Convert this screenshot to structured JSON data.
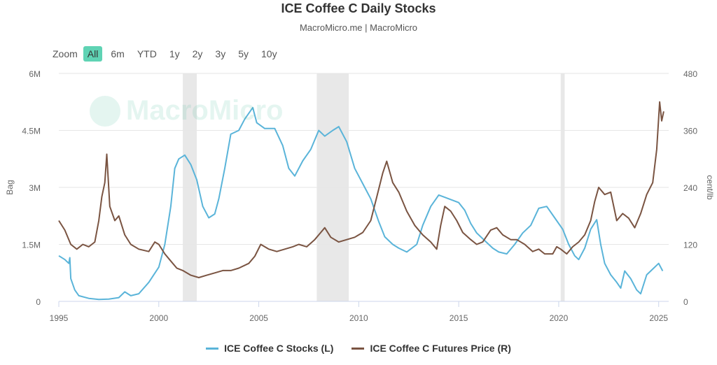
{
  "chart_data": {
    "type": "line",
    "title": "ICE Coffee C Daily Stocks",
    "subtitle": "MacroMicro.me | MacroMicro",
    "watermark": "MacroMicro",
    "zoom": {
      "label": "Zoom",
      "options": [
        "All",
        "6m",
        "YTD",
        "1y",
        "2y",
        "3y",
        "5y",
        "10y"
      ],
      "selected": "All"
    },
    "x_ticks": [
      "1995",
      "2000",
      "2005",
      "2010",
      "2015",
      "2020",
      "2025"
    ],
    "y_left": {
      "label": "Bag",
      "ticks": [
        "0",
        "1.5M",
        "3M",
        "4.5M",
        "6M"
      ],
      "range": [
        0,
        6000000
      ]
    },
    "y_right": {
      "label": "cent/lb",
      "ticks": [
        "0",
        "120",
        "240",
        "360",
        "480"
      ],
      "range": [
        0,
        480
      ]
    },
    "x_range": [
      1995,
      2025.5
    ],
    "recessions": [
      [
        2001.2,
        2001.9
      ],
      [
        2007.9,
        2009.5
      ],
      [
        2020.1,
        2020.3
      ]
    ],
    "colors": {
      "stocks": "#5ab4d9",
      "price": "#7a5442",
      "recession": "#e8e8e8",
      "grid": "#e6e6e6"
    },
    "series": [
      {
        "name": "ICE Coffee C Stocks (L)",
        "axis": "left",
        "color": "#5ab4d9",
        "points": [
          [
            1995.0,
            1200000
          ],
          [
            1995.3,
            1100000
          ],
          [
            1995.5,
            1000000
          ],
          [
            1995.55,
            1150000
          ],
          [
            1995.6,
            600000
          ],
          [
            1995.8,
            300000
          ],
          [
            1996.0,
            150000
          ],
          [
            1996.5,
            80000
          ],
          [
            1997.0,
            50000
          ],
          [
            1997.5,
            60000
          ],
          [
            1998.0,
            100000
          ],
          [
            1998.3,
            250000
          ],
          [
            1998.6,
            150000
          ],
          [
            1999.0,
            200000
          ],
          [
            1999.5,
            500000
          ],
          [
            2000.0,
            900000
          ],
          [
            2000.3,
            1500000
          ],
          [
            2000.6,
            2500000
          ],
          [
            2000.8,
            3500000
          ],
          [
            2001.0,
            3750000
          ],
          [
            2001.3,
            3850000
          ],
          [
            2001.6,
            3600000
          ],
          [
            2001.9,
            3200000
          ],
          [
            2002.2,
            2500000
          ],
          [
            2002.5,
            2200000
          ],
          [
            2002.8,
            2300000
          ],
          [
            2003.0,
            2700000
          ],
          [
            2003.3,
            3500000
          ],
          [
            2003.6,
            4400000
          ],
          [
            2004.0,
            4500000
          ],
          [
            2004.3,
            4800000
          ],
          [
            2004.7,
            5100000
          ],
          [
            2004.9,
            4700000
          ],
          [
            2005.3,
            4550000
          ],
          [
            2005.8,
            4550000
          ],
          [
            2006.2,
            4100000
          ],
          [
            2006.5,
            3500000
          ],
          [
            2006.8,
            3300000
          ],
          [
            2007.2,
            3700000
          ],
          [
            2007.6,
            4000000
          ],
          [
            2008.0,
            4500000
          ],
          [
            2008.3,
            4350000
          ],
          [
            2008.7,
            4500000
          ],
          [
            2009.0,
            4600000
          ],
          [
            2009.4,
            4200000
          ],
          [
            2009.8,
            3500000
          ],
          [
            2010.3,
            3000000
          ],
          [
            2010.6,
            2700000
          ],
          [
            2011.0,
            2100000
          ],
          [
            2011.3,
            1700000
          ],
          [
            2011.7,
            1500000
          ],
          [
            2012.0,
            1400000
          ],
          [
            2012.4,
            1300000
          ],
          [
            2012.9,
            1500000
          ],
          [
            2013.2,
            2000000
          ],
          [
            2013.6,
            2500000
          ],
          [
            2014.0,
            2800000
          ],
          [
            2014.5,
            2700000
          ],
          [
            2015.0,
            2600000
          ],
          [
            2015.3,
            2400000
          ],
          [
            2015.6,
            2050000
          ],
          [
            2015.9,
            1800000
          ],
          [
            2016.3,
            1600000
          ],
          [
            2016.7,
            1400000
          ],
          [
            2017.0,
            1300000
          ],
          [
            2017.4,
            1250000
          ],
          [
            2017.8,
            1500000
          ],
          [
            2018.2,
            1800000
          ],
          [
            2018.6,
            2000000
          ],
          [
            2019.0,
            2450000
          ],
          [
            2019.4,
            2500000
          ],
          [
            2019.8,
            2200000
          ],
          [
            2020.2,
            1900000
          ],
          [
            2020.5,
            1500000
          ],
          [
            2020.8,
            1200000
          ],
          [
            2021.0,
            1100000
          ],
          [
            2021.3,
            1400000
          ],
          [
            2021.6,
            1900000
          ],
          [
            2021.9,
            2150000
          ],
          [
            2022.1,
            1500000
          ],
          [
            2022.3,
            1000000
          ],
          [
            2022.6,
            700000
          ],
          [
            2022.9,
            500000
          ],
          [
            2023.1,
            350000
          ],
          [
            2023.3,
            800000
          ],
          [
            2023.6,
            600000
          ],
          [
            2023.9,
            300000
          ],
          [
            2024.1,
            200000
          ],
          [
            2024.4,
            700000
          ],
          [
            2024.8,
            900000
          ],
          [
            2025.0,
            1000000
          ],
          [
            2025.2,
            800000
          ]
        ]
      },
      {
        "name": "ICE Coffee C Futures Price (R)",
        "axis": "right",
        "color": "#7a5442",
        "points": [
          [
            1995.0,
            170
          ],
          [
            1995.3,
            150
          ],
          [
            1995.6,
            120
          ],
          [
            1995.9,
            110
          ],
          [
            1996.2,
            120
          ],
          [
            1996.5,
            115
          ],
          [
            1996.8,
            125
          ],
          [
            1997.0,
            170
          ],
          [
            1997.15,
            220
          ],
          [
            1997.3,
            250
          ],
          [
            1997.4,
            310
          ],
          [
            1997.55,
            200
          ],
          [
            1997.8,
            170
          ],
          [
            1998.0,
            180
          ],
          [
            1998.3,
            140
          ],
          [
            1998.6,
            120
          ],
          [
            1999.0,
            110
          ],
          [
            1999.5,
            105
          ],
          [
            1999.8,
            125
          ],
          [
            2000.0,
            120
          ],
          [
            2000.3,
            100
          ],
          [
            2000.6,
            85
          ],
          [
            2000.9,
            70
          ],
          [
            2001.2,
            65
          ],
          [
            2001.6,
            55
          ],
          [
            2002.0,
            50
          ],
          [
            2002.4,
            55
          ],
          [
            2002.8,
            60
          ],
          [
            2003.2,
            65
          ],
          [
            2003.6,
            65
          ],
          [
            2004.0,
            70
          ],
          [
            2004.5,
            80
          ],
          [
            2004.8,
            95
          ],
          [
            2005.1,
            120
          ],
          [
            2005.5,
            110
          ],
          [
            2005.9,
            105
          ],
          [
            2006.3,
            110
          ],
          [
            2006.7,
            115
          ],
          [
            2007.0,
            120
          ],
          [
            2007.4,
            115
          ],
          [
            2007.8,
            130
          ],
          [
            2008.1,
            145
          ],
          [
            2008.3,
            155
          ],
          [
            2008.6,
            135
          ],
          [
            2009.0,
            125
          ],
          [
            2009.4,
            130
          ],
          [
            2009.8,
            135
          ],
          [
            2010.2,
            145
          ],
          [
            2010.6,
            170
          ],
          [
            2010.9,
            220
          ],
          [
            2011.2,
            270
          ],
          [
            2011.4,
            295
          ],
          [
            2011.7,
            250
          ],
          [
            2012.0,
            230
          ],
          [
            2012.4,
            190
          ],
          [
            2012.8,
            160
          ],
          [
            2013.2,
            140
          ],
          [
            2013.6,
            125
          ],
          [
            2013.9,
            110
          ],
          [
            2014.1,
            160
          ],
          [
            2014.3,
            200
          ],
          [
            2014.6,
            190
          ],
          [
            2014.9,
            170
          ],
          [
            2015.2,
            145
          ],
          [
            2015.6,
            130
          ],
          [
            2015.9,
            120
          ],
          [
            2016.2,
            125
          ],
          [
            2016.6,
            150
          ],
          [
            2016.9,
            155
          ],
          [
            2017.2,
            140
          ],
          [
            2017.6,
            130
          ],
          [
            2017.9,
            130
          ],
          [
            2018.3,
            120
          ],
          [
            2018.7,
            105
          ],
          [
            2019.0,
            110
          ],
          [
            2019.3,
            100
          ],
          [
            2019.7,
            100
          ],
          [
            2019.9,
            115
          ],
          [
            2020.1,
            110
          ],
          [
            2020.4,
            100
          ],
          [
            2020.7,
            115
          ],
          [
            2021.0,
            125
          ],
          [
            2021.3,
            140
          ],
          [
            2021.6,
            170
          ],
          [
            2021.8,
            210
          ],
          [
            2022.0,
            240
          ],
          [
            2022.3,
            225
          ],
          [
            2022.6,
            230
          ],
          [
            2022.9,
            170
          ],
          [
            2023.2,
            185
          ],
          [
            2023.5,
            175
          ],
          [
            2023.8,
            155
          ],
          [
            2024.1,
            185
          ],
          [
            2024.4,
            225
          ],
          [
            2024.7,
            250
          ],
          [
            2024.9,
            320
          ],
          [
            2025.05,
            420
          ],
          [
            2025.15,
            380
          ],
          [
            2025.25,
            400
          ]
        ]
      }
    ]
  }
}
